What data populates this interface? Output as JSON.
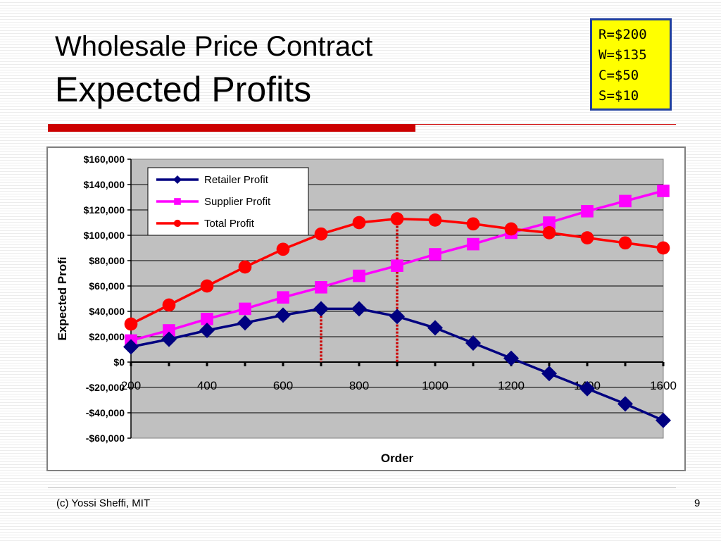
{
  "slide": {
    "title_line1": "Wholesale Price Contract",
    "title_line2": "Expected Profits",
    "footer_left": "(c) Yossi Sheffi, MIT",
    "page_number": "9"
  },
  "params": [
    "R=$200",
    "W=$135",
    "C=$50",
    "S=$10"
  ],
  "chart_data": {
    "type": "line",
    "xlabel": "Order",
    "ylabel": "Expected Profi",
    "ylim": [
      -60000,
      160000
    ],
    "y_ticks": [
      160000,
      140000,
      120000,
      100000,
      80000,
      60000,
      40000,
      20000,
      0,
      -20000,
      -40000,
      -60000
    ],
    "y_tick_labels": [
      "$160,000",
      "$140,000",
      "$120,000",
      "$100,000",
      "$80,000",
      "$60,000",
      "$40,000",
      "$20,000",
      "$0",
      "-$20,000",
      "-$40,000",
      "-$60,000"
    ],
    "xlim": [
      200,
      1600
    ],
    "x_tick_labels": [
      "200",
      "400",
      "600",
      "800",
      "1000",
      "1200",
      "1400",
      "1600"
    ],
    "x": [
      200,
      300,
      400,
      500,
      600,
      700,
      800,
      900,
      1000,
      1100,
      1200,
      1300,
      1400,
      1500,
      1600
    ],
    "series": [
      {
        "name": "Retailer Profit",
        "color": "#000080",
        "marker": "diamond",
        "values": [
          12000,
          18000,
          25000,
          31000,
          37000,
          42000,
          42000,
          36000,
          27000,
          15000,
          3000,
          -9000,
          -21000,
          -33000,
          -46000
        ]
      },
      {
        "name": "Supplier Profit",
        "color": "#ff00ff",
        "marker": "square",
        "values": [
          17000,
          25000,
          34000,
          42000,
          51000,
          59000,
          68000,
          76000,
          85000,
          93000,
          102000,
          110000,
          119000,
          127000,
          135000
        ]
      },
      {
        "name": "Total Profit",
        "color": "#ff0000",
        "marker": "circle",
        "values": [
          30000,
          45000,
          60000,
          75000,
          89000,
          101000,
          110000,
          113000,
          112000,
          109000,
          105000,
          102000,
          98000,
          94000,
          90000
        ]
      }
    ],
    "reference_lines": [
      {
        "x": 700,
        "color": "#cc0000"
      },
      {
        "x": 900,
        "color": "#cc0000"
      }
    ],
    "legend_position": "top-left",
    "grid": true,
    "plot_background": "#c0c0c0"
  }
}
